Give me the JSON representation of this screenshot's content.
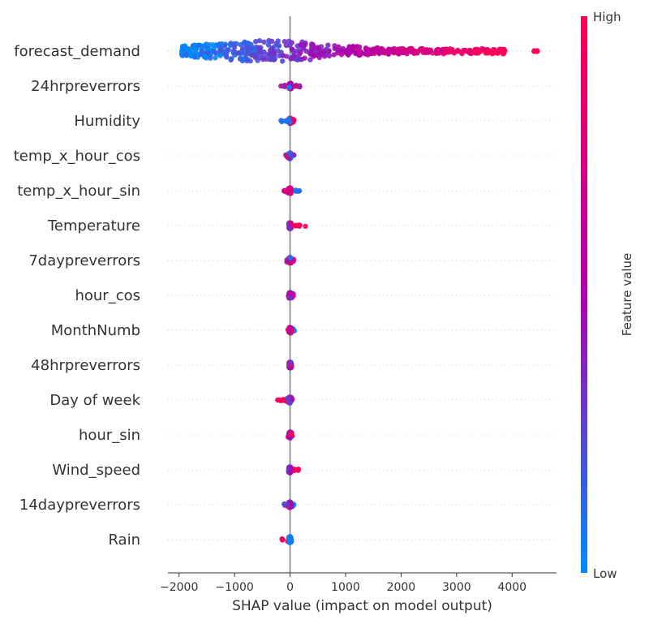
{
  "chart_data": {
    "type": "scatter",
    "subtype": "shap-beeswarm",
    "xlabel": "SHAP value (impact on model output)",
    "xlim": [
      -2200,
      4800
    ],
    "xticks": [
      -2000,
      -1000,
      0,
      1000,
      2000,
      3000,
      4000
    ],
    "xtick_labels": [
      "−2000",
      "−1000",
      "0",
      "1000",
      "2000",
      "3000",
      "4000"
    ],
    "grid": false,
    "colorbar": {
      "label": "Feature value",
      "high_label": "High",
      "low_label": "Low",
      "low_color": "#008bfb",
      "mid_color": "#b000ac",
      "high_color": "#ff0052",
      "placement": "right"
    },
    "features": [
      {
        "name": "forecast_demand",
        "min": -1950,
        "max": 3880,
        "outliers": [
          4400,
          4450
        ],
        "color_trend": "low-left-high-right"
      },
      {
        "name": "24hrpreverrors",
        "min": -170,
        "max": 230,
        "color_trend": "mixed"
      },
      {
        "name": "Humidity",
        "min": -170,
        "max": 80,
        "color_trend": "low-left"
      },
      {
        "name": "temp_x_hour_cos",
        "min": -90,
        "max": 70,
        "color_trend": "mixed"
      },
      {
        "name": "temp_x_hour_sin",
        "min": -110,
        "max": 200,
        "color_trend": "low-right"
      },
      {
        "name": "Temperature",
        "min": -60,
        "max": 310,
        "color_trend": "high-right"
      },
      {
        "name": "7daypreverrors",
        "min": -60,
        "max": 70,
        "color_trend": "mixed"
      },
      {
        "name": "hour_cos",
        "min": -30,
        "max": 60,
        "color_trend": "mixed"
      },
      {
        "name": "MonthNumb",
        "min": -40,
        "max": 90,
        "color_trend": "mixed"
      },
      {
        "name": "48hrpreverrors",
        "min": -70,
        "max": 40,
        "color_trend": "mixed"
      },
      {
        "name": "Day of week",
        "min": -280,
        "max": 40,
        "color_trend": "high-left"
      },
      {
        "name": "hour_sin",
        "min": -40,
        "max": 40,
        "color_trend": "mixed"
      },
      {
        "name": "Wind_speed",
        "min": -30,
        "max": 160,
        "color_trend": "high-right"
      },
      {
        "name": "14daypreverrors",
        "min": -110,
        "max": 70,
        "color_trend": "mixed"
      },
      {
        "name": "Rain",
        "min": -150,
        "max": 90,
        "color_trend": "high-spread"
      }
    ]
  }
}
